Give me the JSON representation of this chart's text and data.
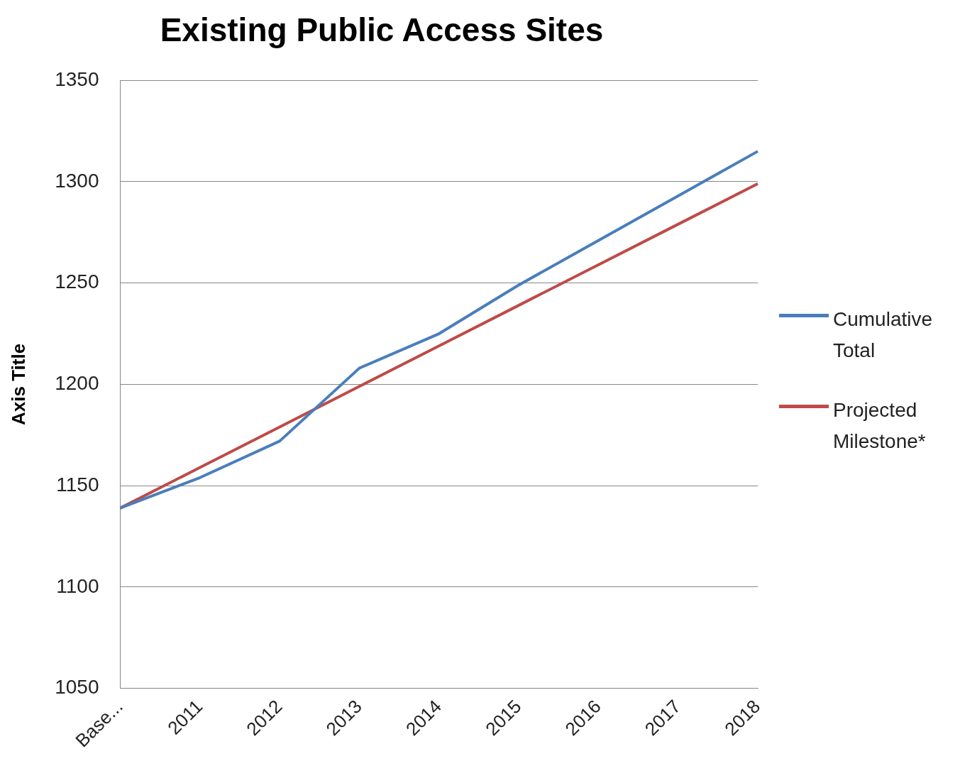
{
  "chart_data": {
    "type": "line",
    "title": "Existing Public Access Sites",
    "ylabel": "Axis Title",
    "categories": [
      "Base...",
      "2011",
      "2012",
      "2013",
      "2014",
      "2015",
      "2016",
      "2017",
      "2018"
    ],
    "series": [
      {
        "name": "Cumulative Total",
        "color": "#4a7ebb",
        "values": [
          1139,
          1154,
          1172,
          1208,
          1225,
          1249,
          1271,
          1293,
          1315
        ]
      },
      {
        "name": "Projected Milestone*",
        "color": "#be4b48",
        "values": [
          1139,
          1159,
          1179,
          1199,
          1219,
          1239,
          1259,
          1279,
          1299
        ]
      }
    ],
    "ylim": [
      1050,
      1350
    ],
    "yticks": [
      1050,
      1100,
      1150,
      1200,
      1250,
      1300,
      1350
    ],
    "grid": "y",
    "legend": "right",
    "marker": "none",
    "line_style": "solid"
  }
}
